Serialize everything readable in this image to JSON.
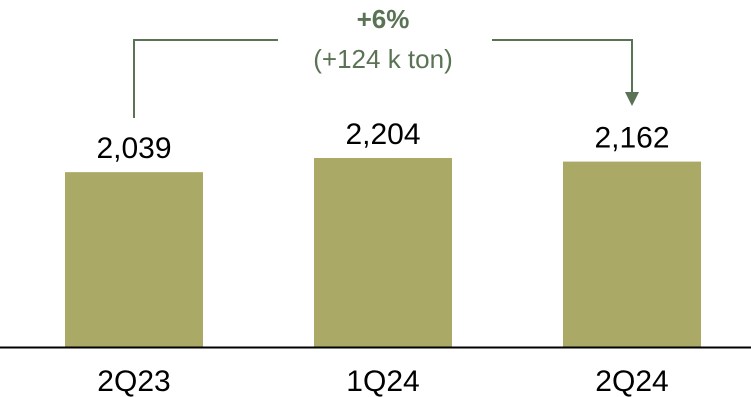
{
  "chart_data": {
    "type": "bar",
    "categories": [
      "2Q23",
      "1Q24",
      "2Q24"
    ],
    "values": [
      2039,
      2204,
      2162
    ],
    "value_labels": [
      "2,039",
      "2,204",
      "2,162"
    ],
    "title": "",
    "xlabel": "",
    "ylabel": "",
    "ylim": [
      0,
      2204
    ],
    "grid": false,
    "legend": "none",
    "annotation": {
      "from": "2Q23",
      "to": "2Q24",
      "change_pct": "+6%",
      "change_abs": "(+124 k ton)"
    },
    "colors": {
      "bar": "#aba966",
      "annotation": "#5b7355",
      "axis": "#000000",
      "text": "#000000"
    }
  }
}
